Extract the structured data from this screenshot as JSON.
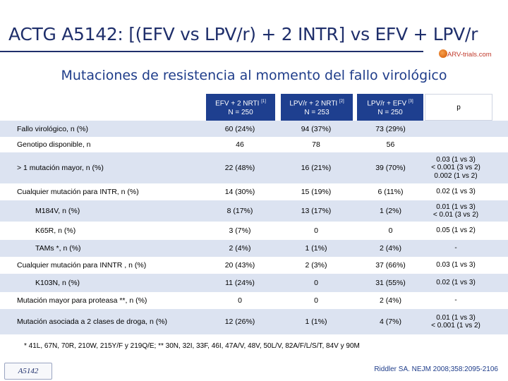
{
  "slide": {
    "title": "ACTG A5142: [(EFV vs LPV/r) + 2 INTR] vs EFV + LPV/r",
    "logo_text": "ARV-trials.com",
    "subtitle": "Mutaciones de resistencia al momento del fallo virológico"
  },
  "table": {
    "headers": [
      {
        "line1": "EFV + 2 NRTI",
        "sup": "[1]",
        "line2": "N = 250"
      },
      {
        "line1": "LPV/r + 2 NRTI",
        "sup": "[2]",
        "line2": "N = 253"
      },
      {
        "line1": "LPV/r + EFV",
        "sup": "[3]",
        "line2": "N = 250"
      },
      {
        "line1": "p",
        "sup": "",
        "line2": ""
      }
    ],
    "rows": [
      {
        "label": "Fallo virológico, n (%)",
        "v1": "60 (24%)",
        "v2": "94 (37%)",
        "v3": "73 (29%)",
        "p": ""
      },
      {
        "label": "Genotipo disponible, n",
        "v1": "46",
        "v2": "78",
        "v3": "56",
        "p": ""
      },
      {
        "label": "> 1 mutación mayor, n (%)",
        "v1": "22 (48%)",
        "v2": "16 (21%)",
        "v3": "39 (70%)",
        "p": "0.03 (1 vs 3)\n< 0.001 (3 vs 2)\n0.002 (1 vs 2)"
      },
      {
        "label": "Cualquier mutación para INTR, n (%)",
        "v1": "14 (30%)",
        "v2": "15 (19%)",
        "v3": "6 (11%)",
        "p": "0.02 (1 vs 3)"
      },
      {
        "label": "M184V, n (%)",
        "v1": "8 (17%)",
        "v2": "13 (17%)",
        "v3": "1 (2%)",
        "p": "0.01 (1 vs 3)\n< 0.01 (3 vs 2)"
      },
      {
        "label": "K65R, n (%)",
        "v1": "3 (7%)",
        "v2": "0",
        "v3": "0",
        "p": "0.05 (1 vs 2)"
      },
      {
        "label": "TAMs *, n (%)",
        "v1": "2 (4%)",
        "v2": "1 (1%)",
        "v3": "2 (4%)",
        "p": "-"
      },
      {
        "label": "Cualquier mutación para INNTR , n (%)",
        "v1": "20 (43%)",
        "v2": "2 (3%)",
        "v3": "37 (66%)",
        "p": "0.03 (1 vs 3)"
      },
      {
        "label": "K103N, n (%)",
        "v1": "11 (24%)",
        "v2": "0",
        "v3": "31 (55%)",
        "p": "0.02 (1 vs 3)"
      },
      {
        "label": "Mutación mayor para proteasa **, n (%)",
        "v1": "0",
        "v2": "0",
        "v3": "2 (4%)",
        "p": "-"
      },
      {
        "label": "Mutación asociada a 2 clases de droga, n (%)",
        "v1": "12 (26%)",
        "v2": "1 (1%)",
        "v3": "4 (7%)",
        "p": "0.01 (1 vs 3)\n< 0.001 (1 vs 2)"
      }
    ]
  },
  "footnote": "* 41L, 67N, 70R, 210W, 215Y/F y 219Q/E; ** 30N, 32I, 33F, 46I, 47A/V, 48V, 50L/V, 82A/F/L/S/T, 84V y 90M",
  "badge": "A5142",
  "reference": "Riddler SA. NEJM 2008;358:2095-2106",
  "colors": {
    "header_bg": "#1e3f8f",
    "row_shade": "#dce3f1",
    "title": "#1f2f6b"
  }
}
